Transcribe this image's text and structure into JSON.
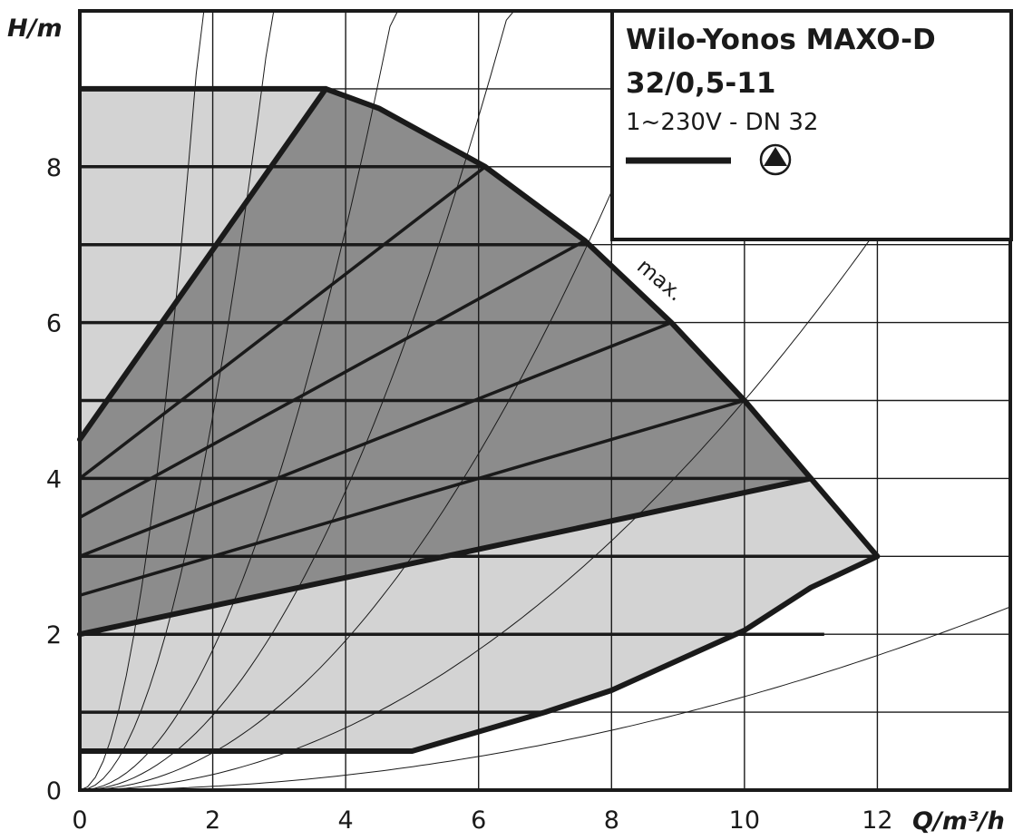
{
  "chart_data": {
    "type": "line",
    "title_lines": [
      "Wilo-Yonos MAXO-D",
      "32/0,5-11"
    ],
    "subtitle": "1~230V - DN 32",
    "legend": {
      "symbol": "pump-symbol-icon",
      "placement": "top-right"
    },
    "xlabel": "Q/m³/h",
    "ylabel": "H/m",
    "xlim": [
      0,
      14
    ],
    "ylim": [
      0,
      10
    ],
    "grid": true,
    "x_ticks": [
      "0",
      "2",
      "4",
      "6",
      "8",
      "10",
      "12"
    ],
    "x_tick_values": [
      0,
      2,
      4,
      6,
      8,
      10,
      12
    ],
    "y_ticks": [
      "0",
      "2",
      "4",
      "6",
      "8"
    ],
    "y_tick_values": [
      0,
      2,
      4,
      6,
      8
    ],
    "colors": {
      "light_region": "#d3d3d3",
      "dark_region": "#8c8c8c",
      "line": "#1a1a1a",
      "grid": "#1a1a1a"
    },
    "max_curve_label": "max.",
    "max_curve": [
      [
        3.7,
        9.0
      ],
      [
        4.5,
        8.75
      ],
      [
        6.1,
        8.0
      ],
      [
        7.6,
        7.05
      ],
      [
        8.9,
        6.0
      ],
      [
        10.0,
        5.0
      ],
      [
        11.0,
        4.0
      ]
    ],
    "outer_boundary": [
      [
        0,
        9.0
      ],
      [
        3.7,
        9.0
      ],
      [
        4.5,
        8.75
      ],
      [
        6.1,
        8.0
      ],
      [
        7.6,
        7.05
      ],
      [
        8.9,
        6.0
      ],
      [
        10.0,
        5.0
      ],
      [
        11.0,
        4.0
      ],
      [
        12.0,
        3.0
      ],
      [
        11.0,
        2.6
      ],
      [
        10.0,
        2.05
      ],
      [
        8.0,
        1.28
      ],
      [
        7.0,
        1.0
      ],
      [
        6.0,
        0.75
      ],
      [
        5.0,
        0.5
      ],
      [
        0,
        0.5
      ]
    ],
    "dark_region": [
      [
        0,
        2.0
      ],
      [
        0,
        4.5
      ],
      [
        3.7,
        9.0
      ],
      [
        4.5,
        8.75
      ],
      [
        6.1,
        8.0
      ],
      [
        7.6,
        7.05
      ],
      [
        8.9,
        6.0
      ],
      [
        10.0,
        5.0
      ],
      [
        11.0,
        4.0
      ]
    ],
    "constant_pressure_curves": [
      {
        "H": 9.0,
        "x_end": 3.7
      },
      {
        "H": 8.0,
        "x_end": 6.1
      },
      {
        "H": 7.0,
        "x_end": 7.65
      },
      {
        "H": 6.0,
        "x_end": 8.9
      },
      {
        "H": 5.0,
        "x_end": 10.0
      },
      {
        "H": 4.0,
        "x_end": 11.0
      },
      {
        "H": 3.0,
        "x_end": 12.0
      },
      {
        "H": 2.0,
        "x_end": 11.2
      },
      {
        "H": 1.0,
        "x_end": 7.0
      },
      {
        "H": 0.5,
        "x_end": 5.0
      }
    ],
    "variable_pressure_curves": [
      {
        "start": [
          0,
          2.0
        ],
        "end": [
          11.0,
          4.0
        ],
        "heavy": true
      },
      {
        "start": [
          0,
          2.5
        ],
        "end": [
          10.0,
          5.0
        ]
      },
      {
        "start": [
          0,
          3.0
        ],
        "end": [
          8.9,
          6.0
        ]
      },
      {
        "start": [
          0,
          3.5
        ],
        "end": [
          7.6,
          7.05
        ]
      },
      {
        "start": [
          0,
          4.0
        ],
        "end": [
          6.1,
          8.0
        ]
      },
      {
        "start": [
          0,
          4.5
        ],
        "end": [
          3.7,
          9.0
        ],
        "heavy": true
      }
    ],
    "system_curve_k": [
      3.0,
      1.2,
      0.45,
      0.24,
      0.12,
      0.05,
      0.012
    ]
  }
}
